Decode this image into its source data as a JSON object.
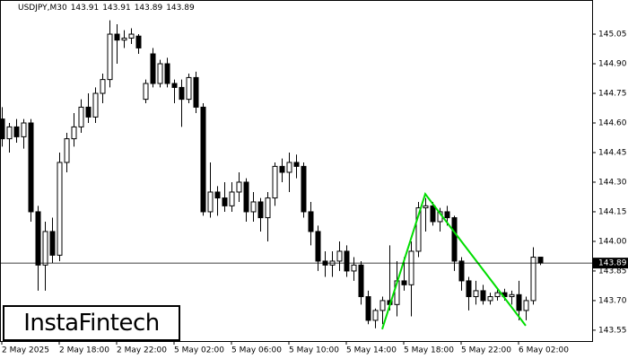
{
  "chart_data": {
    "type": "candlestick",
    "title": "USDJPY,M30",
    "quote": [
      143.91,
      143.91,
      143.89,
      143.89
    ],
    "last_price": 143.89,
    "watermark": "InstaFintech",
    "ylim": [
      143.495,
      145.223
    ],
    "yticks": [
      145.05,
      {
        "value": 144.9,
        "label": "144.90"
      },
      144.75,
      {
        "value": 144.6,
        "label": "144.60"
      },
      144.45,
      {
        "value": 144.3,
        "label": "144.30"
      },
      144.15,
      {
        "value": 144,
        "label": "144.00"
      },
      143.85,
      {
        "value": 143.7,
        "label": "143.70"
      },
      143.55
    ],
    "categories": [
      "2 May 2025",
      null,
      null,
      null,
      null,
      null,
      null,
      null,
      "2 May 18:00",
      null,
      null,
      null,
      null,
      null,
      null,
      null,
      "2 May 22:00",
      null,
      null,
      null,
      null,
      null,
      null,
      null,
      "5 May 02:00",
      null,
      null,
      null,
      null,
      null,
      null,
      null,
      "5 May 06:00",
      null,
      null,
      null,
      null,
      null,
      null,
      null,
      "5 May 10:00",
      null,
      null,
      null,
      null,
      null,
      null,
      null,
      "5 May 14:00",
      null,
      null,
      null,
      null,
      null,
      null,
      null,
      "5 May 18:00",
      null,
      null,
      null,
      null,
      null,
      null,
      null,
      "5 May 22:00",
      null,
      null,
      null,
      null,
      null,
      null,
      null,
      "6 May 02:00",
      null,
      null,
      null
    ],
    "open": [
      144.62,
      144.52,
      144.58,
      144.53,
      144.6,
      144.15,
      143.88,
      144.05,
      143.93,
      144.4,
      144.52,
      144.58,
      144.68,
      144.63,
      144.75,
      144.82,
      145.05,
      145.02,
      145.03,
      145.04,
      144.72,
      144.95,
      144.8,
      144.9,
      144.8,
      144.78,
      144.72,
      144.83,
      144.68,
      144.15,
      144.25,
      144.22,
      144.18,
      144.25,
      144.3,
      144.15,
      144.2,
      144.12,
      144.22,
      144.38,
      144.35,
      144.4,
      144.38,
      144.15,
      144.05,
      143.9,
      143.88,
      143.9,
      143.95,
      143.85,
      143.88,
      143.72,
      143.6,
      143.65,
      143.7,
      143.68,
      143.8,
      143.78,
      143.95,
      144.17,
      144.18,
      144.1,
      144.15,
      144.12,
      143.9,
      143.8,
      143.72,
      143.75,
      143.7,
      143.72,
      143.74,
      143.72,
      143.73,
      143.65,
      143.7,
      143.92
    ],
    "high": [
      144.68,
      144.6,
      144.62,
      144.62,
      144.62,
      144.18,
      144.1,
      144.12,
      144.45,
      144.55,
      144.65,
      144.72,
      144.75,
      144.78,
      144.85,
      145.12,
      145.1,
      145.07,
      145.08,
      145.05,
      144.82,
      144.98,
      144.92,
      144.93,
      144.82,
      144.82,
      144.85,
      144.86,
      144.7,
      144.4,
      144.28,
      144.3,
      144.3,
      144.35,
      144.32,
      144.25,
      144.22,
      144.25,
      144.4,
      144.42,
      144.45,
      144.44,
      144.4,
      144.2,
      144.08,
      143.95,
      143.95,
      144.0,
      143.98,
      143.92,
      143.9,
      143.75,
      143.66,
      143.72,
      143.98,
      143.9,
      143.92,
      144.0,
      144.2,
      144.22,
      144.2,
      144.17,
      144.18,
      144.13,
      143.92,
      143.82,
      143.8,
      143.78,
      143.74,
      143.76,
      143.76,
      143.75,
      143.8,
      143.72,
      143.97,
      143.92
    ],
    "low": [
      144.48,
      144.45,
      144.5,
      144.47,
      144.1,
      143.75,
      143.75,
      143.89,
      143.9,
      144.35,
      144.48,
      144.55,
      144.6,
      144.6,
      144.7,
      144.78,
      144.9,
      144.98,
      145.0,
      144.95,
      144.7,
      144.78,
      144.78,
      144.78,
      144.7,
      144.58,
      144.7,
      144.65,
      144.13,
      144.12,
      144.13,
      144.15,
      144.15,
      144.2,
      144.1,
      144.1,
      144.05,
      144.0,
      144.18,
      144.3,
      144.25,
      144.32,
      144.12,
      143.98,
      143.85,
      143.82,
      143.82,
      143.85,
      143.82,
      143.8,
      143.68,
      143.58,
      143.56,
      143.58,
      143.65,
      143.62,
      143.75,
      143.62,
      143.92,
      144.05,
      144.08,
      144.05,
      144.08,
      143.85,
      143.75,
      143.65,
      143.68,
      143.68,
      143.68,
      143.7,
      143.7,
      143.68,
      143.6,
      143.6,
      143.68,
      143.88
    ],
    "close": [
      144.52,
      144.58,
      144.53,
      144.6,
      144.15,
      143.88,
      144.05,
      143.93,
      144.4,
      144.52,
      144.58,
      144.68,
      144.63,
      144.75,
      144.82,
      145.05,
      145.02,
      145.03,
      145.05,
      144.98,
      144.8,
      144.8,
      144.9,
      144.8,
      144.78,
      144.72,
      144.83,
      144.68,
      144.15,
      144.25,
      144.22,
      144.18,
      144.25,
      144.3,
      144.15,
      144.2,
      144.12,
      144.22,
      144.38,
      144.35,
      144.4,
      144.38,
      144.15,
      144.05,
      143.9,
      143.88,
      143.9,
      143.95,
      143.85,
      143.88,
      143.72,
      143.6,
      143.65,
      143.7,
      143.68,
      143.8,
      143.78,
      143.95,
      144.17,
      144.18,
      144.1,
      144.15,
      144.12,
      143.9,
      143.8,
      143.72,
      143.75,
      143.7,
      143.72,
      143.74,
      143.72,
      143.73,
      143.65,
      143.7,
      143.92,
      143.89
    ],
    "pattern": {
      "color": "#00dd00",
      "x": [
        53,
        59,
        73
      ],
      "y": [
        143.555,
        144.24,
        143.573
      ]
    }
  }
}
